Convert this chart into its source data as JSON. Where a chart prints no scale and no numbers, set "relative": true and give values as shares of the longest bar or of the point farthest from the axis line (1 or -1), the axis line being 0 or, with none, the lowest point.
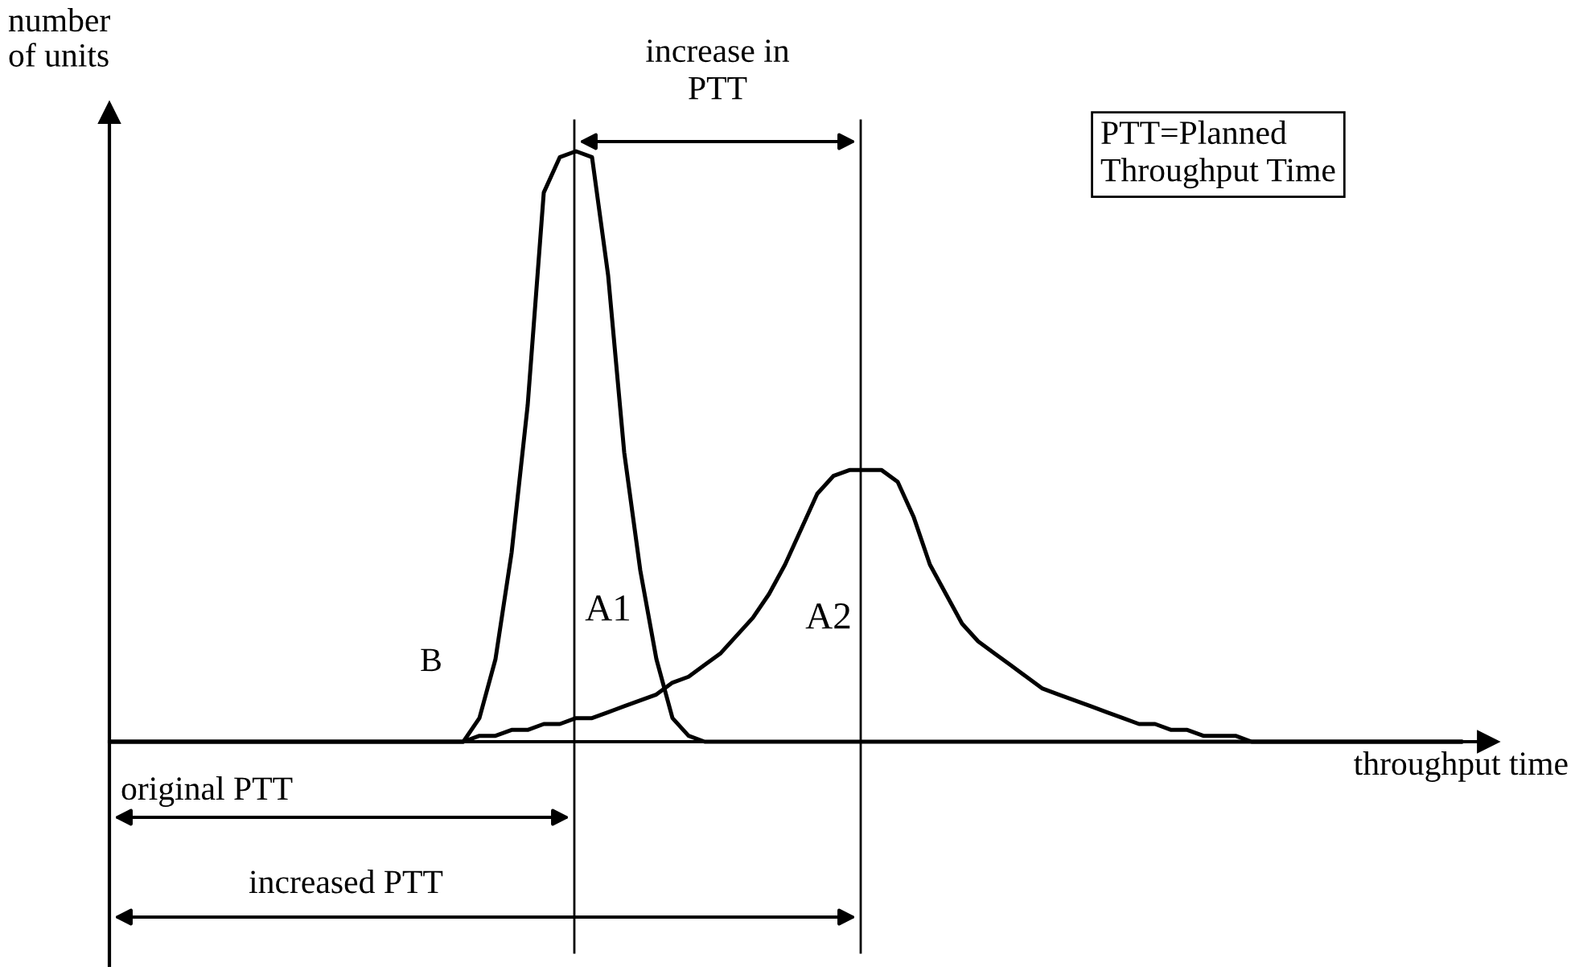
{
  "chart_data": {
    "type": "line",
    "relative": true,
    "legend": false,
    "marker": "none",
    "line_style": "solid",
    "xlabel": "throughput time",
    "ylabel": "number\nof units",
    "categories": [
      null,
      null,
      null,
      null,
      null,
      null,
      null,
      null,
      null,
      null,
      null,
      null,
      null,
      null,
      null,
      null,
      null,
      null,
      null,
      null,
      null,
      null,
      null,
      null,
      null,
      null,
      null,
      null,
      null,
      null,
      null,
      null,
      null,
      null,
      null,
      null,
      null,
      null,
      null,
      null,
      null,
      null,
      null,
      null,
      null,
      null,
      null,
      null,
      null,
      null,
      null,
      null,
      null,
      null,
      null,
      null,
      null,
      null,
      null,
      null,
      null,
      null,
      null,
      null,
      null,
      null,
      null,
      null,
      null,
      null,
      null,
      null,
      null,
      null,
      null,
      null,
      null,
      null,
      null,
      null,
      null,
      null,
      null,
      null,
      null
    ],
    "series": [
      {
        "name": "A1",
        "color": "#000000",
        "values": [
          0,
          0,
          0,
          0,
          0,
          0,
          0,
          0,
          0,
          0,
          0,
          0,
          0,
          0,
          0,
          0,
          0,
          0,
          0,
          0,
          0,
          0,
          0,
          0.04,
          0.14,
          0.32,
          0.57,
          0.93,
          0.99,
          1,
          0.99,
          0.79,
          0.49,
          0.29,
          0.14,
          0.04,
          0.01,
          0,
          0,
          0,
          0,
          0,
          0,
          0,
          0,
          0,
          0,
          0,
          0,
          0,
          0,
          0,
          0,
          0,
          0,
          0,
          0,
          0,
          0,
          0,
          0,
          0,
          0,
          0,
          0,
          0,
          0,
          0,
          0,
          0,
          0,
          0,
          0,
          0,
          0,
          0,
          0,
          0,
          0,
          0,
          0,
          0,
          0,
          0,
          0
        ]
      },
      {
        "name": "A2",
        "color": "#000000",
        "values": [
          0,
          0,
          0,
          0,
          0,
          0,
          0,
          0,
          0,
          0,
          0,
          0,
          0,
          0,
          0,
          0,
          0,
          0,
          0,
          0,
          0,
          0,
          0,
          0.01,
          0.01,
          0.02,
          0.02,
          0.03,
          0.03,
          0.04,
          0.04,
          0.05,
          0.06,
          0.07,
          0.08,
          0.1,
          0.11,
          0.13,
          0.15,
          0.18,
          0.21,
          0.25,
          0.3,
          0.36,
          0.42,
          0.45,
          0.46,
          0.46,
          0.46,
          0.44,
          0.38,
          0.3,
          0.25,
          0.2,
          0.17,
          0.15,
          0.13,
          0.11,
          0.09,
          0.08,
          0.07,
          0.06,
          0.05,
          0.04,
          0.03,
          0.03,
          0.02,
          0.02,
          0.01,
          0.01,
          0.01,
          0,
          0,
          0,
          0,
          0,
          0,
          0,
          0,
          0,
          0,
          0,
          0,
          0,
          0
        ]
      }
    ],
    "annotations": [
      "B",
      "PTT=Planned\nThroughput Time",
      "increase in\nPTT",
      "original PTT",
      "increased PTT"
    ]
  }
}
